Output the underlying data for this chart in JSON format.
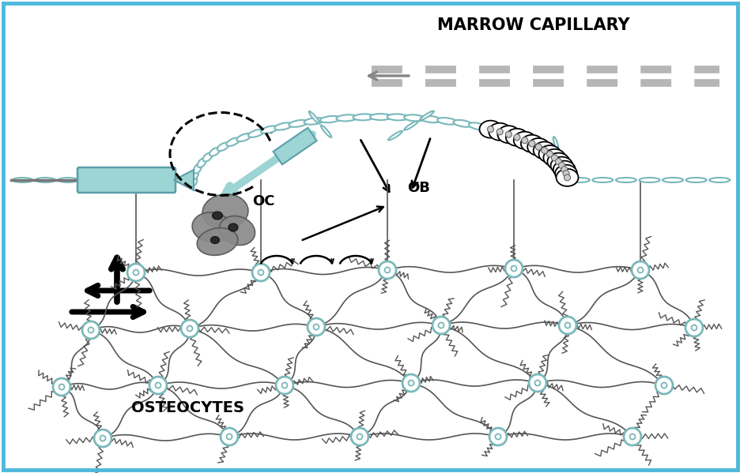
{
  "background_color": "#ffffff",
  "border_color": "#4eb8dc",
  "marrow_capillary_label": "MARROW CAPILLARY",
  "oc_label": "OC",
  "ob_label": "OB",
  "osteocytes_label": "OSTEOCYTES",
  "teal_light": "#9dd4d4",
  "teal_mid": "#7bbebe",
  "teal_dark": "#5a9faa",
  "gray_cap": "#999999",
  "bone_teal": "#7ab8ba",
  "cell_gray": "#8a8a8a",
  "cell_dark": "#333333",
  "label_fontsize": 15,
  "oc_ob_fontsize": 13,
  "osteocytes_fontsize": 14
}
